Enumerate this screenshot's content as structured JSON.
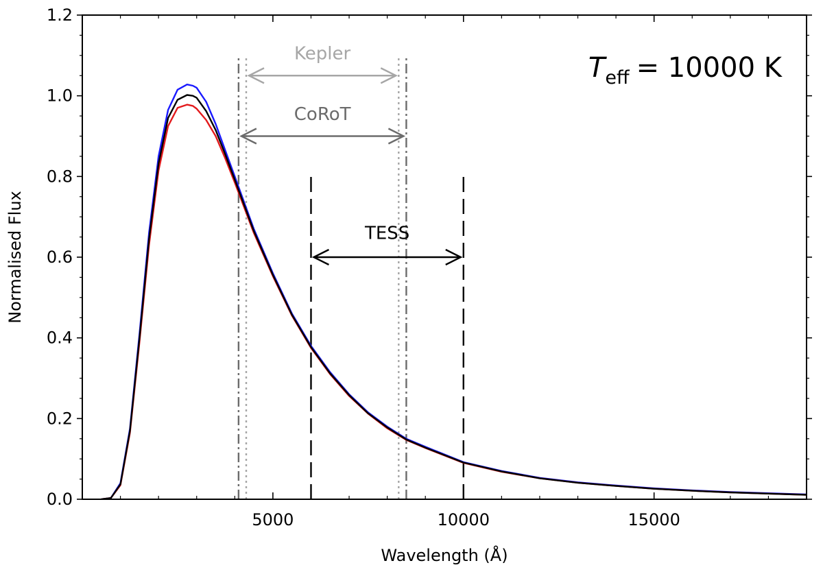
{
  "chart_data": {
    "type": "line",
    "title": "",
    "xlabel": "Wavelength (Å)",
    "ylabel": "Normalised Flux",
    "xlim": [
      0,
      19000
    ],
    "ylim": [
      0.0,
      1.2
    ],
    "x_ticks": [
      5000,
      10000,
      15000
    ],
    "x_tick_labels": [
      "5000",
      "10000",
      "15000"
    ],
    "y_ticks": [
      0.0,
      0.2,
      0.4,
      0.6,
      0.8,
      1.0,
      1.2
    ],
    "y_tick_labels": [
      "0.0",
      "0.2",
      "0.4",
      "0.6",
      "0.8",
      "1.0",
      "1.2"
    ],
    "temperature_label": {
      "symbol": "T",
      "subscript": "eff",
      "value": "= 10000 K"
    },
    "series": [
      {
        "name": "blue model",
        "color": "#1a1aff",
        "x": [
          500,
          750,
          1000,
          1250,
          1500,
          1750,
          2000,
          2250,
          2500,
          2750,
          2900,
          3000,
          3250,
          3500,
          3750,
          4000,
          4500,
          5000,
          5500,
          6000,
          6500,
          7000,
          7500,
          8000,
          8500,
          9000,
          10000,
          11000,
          12000,
          13000,
          14000,
          15000,
          16000,
          17000,
          18000,
          19000
        ],
        "y": [
          0.0,
          0.003,
          0.04,
          0.175,
          0.41,
          0.66,
          0.85,
          0.965,
          1.015,
          1.028,
          1.025,
          1.02,
          0.985,
          0.93,
          0.865,
          0.8,
          0.67,
          0.56,
          0.46,
          0.38,
          0.315,
          0.26,
          0.215,
          0.18,
          0.15,
          0.13,
          0.092,
          0.07,
          0.053,
          0.042,
          0.034,
          0.027,
          0.022,
          0.018,
          0.015,
          0.012
        ]
      },
      {
        "name": "red model",
        "color": "#e31a1c",
        "x": [
          500,
          750,
          1000,
          1250,
          1500,
          1750,
          2000,
          2250,
          2500,
          2750,
          2900,
          3000,
          3250,
          3500,
          3750,
          4000,
          4500,
          5000,
          5500,
          6000,
          6500,
          7000,
          7500,
          8000,
          8500,
          9000,
          10000,
          11000,
          12000,
          13000,
          14000,
          15000,
          16000,
          17000,
          18000,
          19000
        ],
        "y": [
          0.0,
          0.003,
          0.035,
          0.165,
          0.39,
          0.63,
          0.815,
          0.925,
          0.97,
          0.978,
          0.975,
          0.968,
          0.94,
          0.9,
          0.845,
          0.785,
          0.66,
          0.553,
          0.455,
          0.375,
          0.31,
          0.256,
          0.212,
          0.176,
          0.147,
          0.127,
          0.09,
          0.068,
          0.052,
          0.041,
          0.033,
          0.026,
          0.021,
          0.017,
          0.014,
          0.011
        ]
      },
      {
        "name": "black model",
        "color": "#000000",
        "x": [
          500,
          750,
          1000,
          1250,
          1500,
          1750,
          2000,
          2250,
          2500,
          2750,
          2900,
          3000,
          3250,
          3500,
          3750,
          4000,
          4500,
          5000,
          5500,
          6000,
          6500,
          7000,
          7500,
          8000,
          8500,
          9000,
          10000,
          11000,
          12000,
          13000,
          14000,
          15000,
          16000,
          17000,
          18000,
          19000
        ],
        "y": [
          0.0,
          0.003,
          0.037,
          0.17,
          0.4,
          0.645,
          0.832,
          0.945,
          0.99,
          1.002,
          1.0,
          0.995,
          0.962,
          0.915,
          0.855,
          0.792,
          0.665,
          0.556,
          0.457,
          0.377,
          0.312,
          0.258,
          0.213,
          0.178,
          0.148,
          0.128,
          0.091,
          0.069,
          0.052,
          0.041,
          0.033,
          0.026,
          0.021,
          0.017,
          0.014,
          0.011
        ]
      }
    ],
    "passbands": [
      {
        "name": "Kepler",
        "color": "#a6a6a6",
        "line_style": "dotted",
        "x_min": 4300,
        "x_max": 8300,
        "line_top": 1.1,
        "arrow_y": 1.05,
        "label_y": 1.09
      },
      {
        "name": "CoRoT",
        "color": "#6b6b6b",
        "line_style": "dashdot",
        "x_min": 4100,
        "x_max": 8500,
        "line_top": 1.1,
        "arrow_y": 0.9,
        "label_y": 0.94
      },
      {
        "name": "TESS",
        "color": "#000000",
        "line_style": "dashed",
        "x_min": 6000,
        "x_max": 10000,
        "line_top": 0.8,
        "arrow_y": 0.6,
        "label_y": 0.645
      }
    ]
  }
}
